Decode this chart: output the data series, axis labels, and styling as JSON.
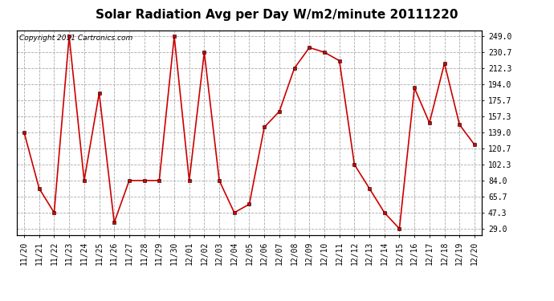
{
  "title": "Solar Radiation Avg per Day W/m2/minute 20111220",
  "copyright": "Copyright 2011 Cartronics.com",
  "dates": [
    "11/20",
    "11/21",
    "11/22",
    "11/23",
    "11/24",
    "11/25",
    "11/26",
    "11/27",
    "11/28",
    "11/29",
    "11/30",
    "12/01",
    "12/02",
    "12/03",
    "12/04",
    "12/05",
    "12/06",
    "12/07",
    "12/08",
    "12/09",
    "12/10",
    "12/11",
    "12/12",
    "12/13",
    "12/14",
    "12/15",
    "12/16",
    "12/17",
    "12/18",
    "12/19",
    "12/20"
  ],
  "values": [
    139.0,
    75.0,
    47.3,
    249.0,
    84.0,
    184.0,
    36.0,
    84.0,
    84.0,
    84.0,
    249.0,
    84.0,
    230.7,
    84.0,
    47.3,
    57.0,
    145.0,
    163.0,
    212.3,
    236.0,
    230.7,
    221.0,
    102.3,
    75.0,
    47.3,
    29.0,
    190.0,
    150.0,
    218.0,
    148.0,
    125.0
  ],
  "line_color": "#cc0000",
  "bg_color": "#ffffff",
  "plot_bg_color": "#ffffff",
  "grid_color": "#aaaaaa",
  "yticks": [
    29.0,
    47.3,
    65.7,
    84.0,
    102.3,
    120.7,
    139.0,
    157.3,
    175.7,
    194.0,
    212.3,
    230.7,
    249.0
  ],
  "ylim": [
    22.0,
    256.0
  ],
  "title_fontsize": 11,
  "tick_fontsize": 7,
  "copyright_fontsize": 6.5
}
